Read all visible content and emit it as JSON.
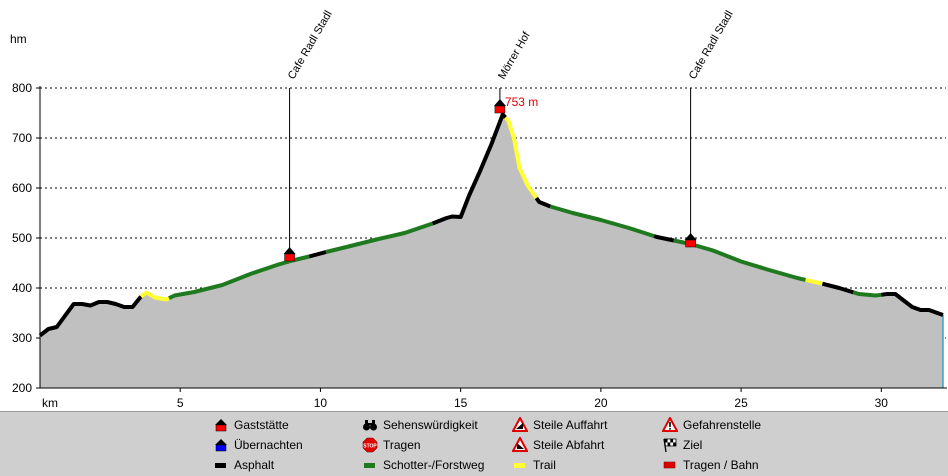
{
  "chart_data": {
    "type": "area",
    "title": "",
    "xlabel": "km",
    "ylabel": "hm",
    "xlim": [
      0,
      32.2
    ],
    "ylim": [
      200,
      800
    ],
    "x_ticks": [
      5,
      10,
      15,
      20,
      25,
      30
    ],
    "y_ticks": [
      200,
      300,
      400,
      500,
      600,
      700,
      800
    ],
    "grid": "horizontal dotted",
    "profile": [
      {
        "x": 0.0,
        "y": 305
      },
      {
        "x": 0.3,
        "y": 318
      },
      {
        "x": 0.6,
        "y": 322
      },
      {
        "x": 0.9,
        "y": 345
      },
      {
        "x": 1.2,
        "y": 368
      },
      {
        "x": 1.5,
        "y": 368
      },
      {
        "x": 1.8,
        "y": 365
      },
      {
        "x": 2.1,
        "y": 372
      },
      {
        "x": 2.4,
        "y": 372
      },
      {
        "x": 2.7,
        "y": 368
      },
      {
        "x": 3.0,
        "y": 362
      },
      {
        "x": 3.3,
        "y": 362
      },
      {
        "x": 3.6,
        "y": 383
      },
      {
        "x": 3.8,
        "y": 391
      },
      {
        "x": 4.1,
        "y": 381
      },
      {
        "x": 4.5,
        "y": 377
      },
      {
        "x": 4.8,
        "y": 385
      },
      {
        "x": 5.5,
        "y": 392
      },
      {
        "x": 6.5,
        "y": 406
      },
      {
        "x": 7.5,
        "y": 428
      },
      {
        "x": 8.5,
        "y": 447
      },
      {
        "x": 9.0,
        "y": 455
      },
      {
        "x": 9.6,
        "y": 463
      },
      {
        "x": 10.2,
        "y": 472
      },
      {
        "x": 11.0,
        "y": 483
      },
      {
        "x": 12.0,
        "y": 497
      },
      {
        "x": 13.0,
        "y": 510
      },
      {
        "x": 14.0,
        "y": 529
      },
      {
        "x": 14.5,
        "y": 540
      },
      {
        "x": 14.7,
        "y": 543
      },
      {
        "x": 15.0,
        "y": 542
      },
      {
        "x": 15.3,
        "y": 585
      },
      {
        "x": 15.7,
        "y": 635
      },
      {
        "x": 16.1,
        "y": 688
      },
      {
        "x": 16.5,
        "y": 747
      },
      {
        "x": 16.7,
        "y": 735
      },
      {
        "x": 16.9,
        "y": 700
      },
      {
        "x": 17.1,
        "y": 640
      },
      {
        "x": 17.4,
        "y": 604
      },
      {
        "x": 17.8,
        "y": 572
      },
      {
        "x": 18.2,
        "y": 563
      },
      {
        "x": 19.0,
        "y": 550
      },
      {
        "x": 20.0,
        "y": 536
      },
      {
        "x": 21.0,
        "y": 520
      },
      {
        "x": 22.0,
        "y": 502
      },
      {
        "x": 23.2,
        "y": 488
      },
      {
        "x": 24.0,
        "y": 475
      },
      {
        "x": 25.0,
        "y": 453
      },
      {
        "x": 26.0,
        "y": 436
      },
      {
        "x": 27.0,
        "y": 420
      },
      {
        "x": 27.8,
        "y": 410
      },
      {
        "x": 28.5,
        "y": 400
      },
      {
        "x": 29.2,
        "y": 388
      },
      {
        "x": 29.8,
        "y": 385
      },
      {
        "x": 30.2,
        "y": 388
      },
      {
        "x": 30.5,
        "y": 388
      },
      {
        "x": 30.8,
        "y": 375
      },
      {
        "x": 31.1,
        "y": 362
      },
      {
        "x": 31.4,
        "y": 356
      },
      {
        "x": 31.7,
        "y": 356
      },
      {
        "x": 32.0,
        "y": 350
      },
      {
        "x": 32.2,
        "y": 346
      }
    ],
    "surface_segments": [
      {
        "from": 0.0,
        "to": 3.6,
        "surface": "asphalt"
      },
      {
        "from": 3.6,
        "to": 4.6,
        "surface": "trail"
      },
      {
        "from": 4.6,
        "to": 9.6,
        "surface": "gravel"
      },
      {
        "from": 9.6,
        "to": 10.2,
        "surface": "asphalt"
      },
      {
        "from": 10.2,
        "to": 14.0,
        "surface": "gravel"
      },
      {
        "from": 14.0,
        "to": 16.6,
        "surface": "asphalt"
      },
      {
        "from": 16.6,
        "to": 17.7,
        "surface": "trail"
      },
      {
        "from": 17.7,
        "to": 18.2,
        "surface": "asphalt"
      },
      {
        "from": 18.2,
        "to": 21.9,
        "surface": "gravel"
      },
      {
        "from": 21.9,
        "to": 22.6,
        "surface": "asphalt"
      },
      {
        "from": 22.6,
        "to": 27.3,
        "surface": "gravel"
      },
      {
        "from": 27.3,
        "to": 27.9,
        "surface": "trail"
      },
      {
        "from": 27.9,
        "to": 29.0,
        "surface": "asphalt"
      },
      {
        "from": 29.0,
        "to": 30.0,
        "surface": "gravel"
      },
      {
        "from": 30.0,
        "to": 32.2,
        "surface": "asphalt"
      }
    ],
    "surface_colors": {
      "asphalt": "#000000",
      "gravel": "#1f7a1f",
      "trail": "#ffff33"
    },
    "pois": [
      {
        "x": 8.9,
        "y": 466,
        "label": "Cafe Radl Stadl"
      },
      {
        "x": 16.4,
        "y": 762,
        "label": "Mörrer Hof",
        "value_label": "753 m"
      },
      {
        "x": 23.2,
        "y": 494,
        "label": "Cafe Radl Stadl"
      }
    ],
    "fill_color": "#c0c0c0",
    "accent_color": "#ff0000",
    "value_label_color": "#e00000"
  },
  "legend": {
    "items": [
      {
        "label": "Gaststätte",
        "icon": "gasthaus-icon",
        "color": "#ff0000"
      },
      {
        "label": "Übernachten",
        "icon": "uebernachten-icon",
        "color": "#0000ff"
      },
      {
        "label": "Asphalt",
        "icon": "asphalt-swatch-icon",
        "color": "#000000"
      },
      {
        "label": "Sehenswürdigkeit",
        "icon": "binoculars-icon",
        "color": "#000000"
      },
      {
        "label": "Tragen",
        "icon": "stop-icon",
        "color": "#e00000"
      },
      {
        "label": "Schotter-/Forstweg",
        "icon": "gravel-swatch-icon",
        "color": "#1f7a1f"
      },
      {
        "label": "Steile Auffahrt",
        "icon": "steep-up-icon",
        "color": "#e00000"
      },
      {
        "label": "Steile Abfahrt",
        "icon": "steep-down-icon",
        "color": "#e00000"
      },
      {
        "label": "Trail",
        "icon": "trail-swatch-icon",
        "color": "#ffff33"
      },
      {
        "label": "Gefahrenstelle",
        "icon": "danger-icon",
        "color": "#e00000"
      },
      {
        "label": "Ziel",
        "icon": "finish-flag-icon",
        "color": "#000000"
      },
      {
        "label": "Tragen / Bahn",
        "icon": "carry-train-swatch-icon",
        "color": "#e00000"
      }
    ]
  }
}
